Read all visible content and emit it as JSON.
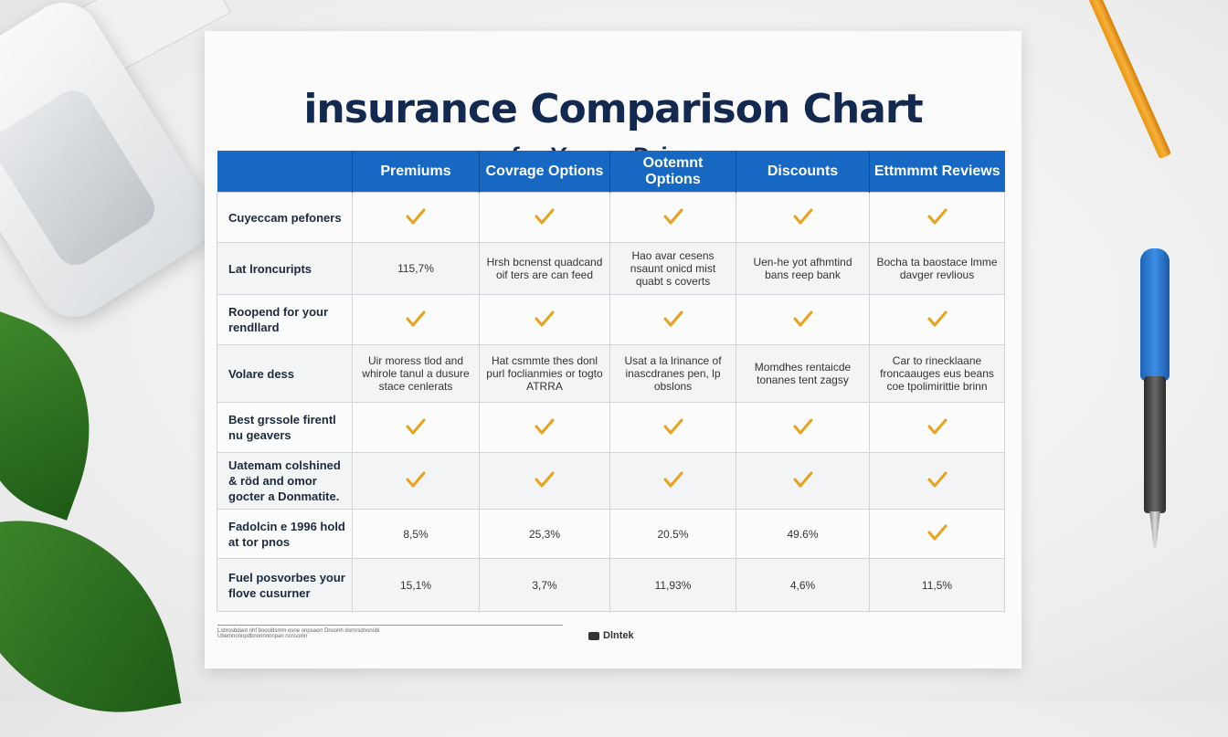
{
  "document": {
    "title": "insurance Comparison Chart",
    "subtitle": "for Young Drivers"
  },
  "table": {
    "headers": [
      "",
      "Premiums",
      "Covrage Options",
      "Ootemnt Options",
      "Discounts",
      "Ettmmmt Reviews"
    ],
    "rows": [
      {
        "label": "Cuyeccam pefoners",
        "cells": [
          {
            "type": "check"
          },
          {
            "type": "check"
          },
          {
            "type": "check"
          },
          {
            "type": "check"
          },
          {
            "type": "check"
          }
        ]
      },
      {
        "label": "Lat lroncuripts",
        "cells": [
          {
            "type": "text",
            "value": "115,7%"
          },
          {
            "type": "text",
            "value": "Hrsh bcnenst quadcand oif ters are can feed"
          },
          {
            "type": "text",
            "value": "Hao avar cesens nsaunt onicd mist quabt s coverts"
          },
          {
            "type": "text",
            "value": "Uen-he yot afhmtind bans reep bank"
          },
          {
            "type": "text",
            "value": "Bocha ta baostace lmme davger revlious"
          }
        ]
      },
      {
        "label": "Roopend for your rendllard",
        "cells": [
          {
            "type": "check"
          },
          {
            "type": "check"
          },
          {
            "type": "check"
          },
          {
            "type": "check"
          },
          {
            "type": "check"
          }
        ]
      },
      {
        "label": "Volare dess",
        "cells": [
          {
            "type": "text",
            "value": "Uir moress tlod and whirole tanul a dusure stace cenlerats"
          },
          {
            "type": "text",
            "value": "Hat csmmte thes donl purl foclianmies or togto ATRRA"
          },
          {
            "type": "text",
            "value": "Usat a la lrinance of inascdranes pen, lp obslons"
          },
          {
            "type": "text",
            "value": "Momdhes rentaicde tonanes tent zagsy"
          },
          {
            "type": "text",
            "value": "Car to rinecklaane froncaauges eus beans coe tpolimirittie brinn"
          }
        ]
      },
      {
        "label": "Best grssole firentl nu geavers",
        "cells": [
          {
            "type": "check"
          },
          {
            "type": "check"
          },
          {
            "type": "check"
          },
          {
            "type": "check"
          },
          {
            "type": "check"
          }
        ]
      },
      {
        "label": "Uatemam colshined & röd and omor gocter a Donmatite.",
        "cells": [
          {
            "type": "check"
          },
          {
            "type": "check"
          },
          {
            "type": "check"
          },
          {
            "type": "check"
          },
          {
            "type": "check"
          }
        ]
      },
      {
        "label": "Fadolcin e 1996 hold at tor pnos",
        "cells": [
          {
            "type": "text",
            "value": "8,5%"
          },
          {
            "type": "text",
            "value": "25,3%"
          },
          {
            "type": "text",
            "value": "20.5%"
          },
          {
            "type": "text",
            "value": "49.6%"
          },
          {
            "type": "check"
          }
        ]
      },
      {
        "label": "Fuel posvorbes your flove cusurner",
        "cells": [
          {
            "type": "text",
            "value": "15,1%"
          },
          {
            "type": "text",
            "value": "3,7%"
          },
          {
            "type": "text",
            "value": "11,93%"
          },
          {
            "type": "text",
            "value": "4,6%"
          },
          {
            "type": "text",
            "value": "11,5%"
          }
        ]
      }
    ]
  },
  "footer": {
    "note": "Lsbrosbdaot nhf boosldsmm osne onpsaorr   Dnsonh dornrsdnonsbl",
    "note2": "Ubemnonnpdbnonnnnnpan ncnsoinn",
    "logo_text": "Dlntek"
  },
  "colors": {
    "header_bg": "#1668c2",
    "title": "#13294f",
    "check": "#e8a21c"
  }
}
